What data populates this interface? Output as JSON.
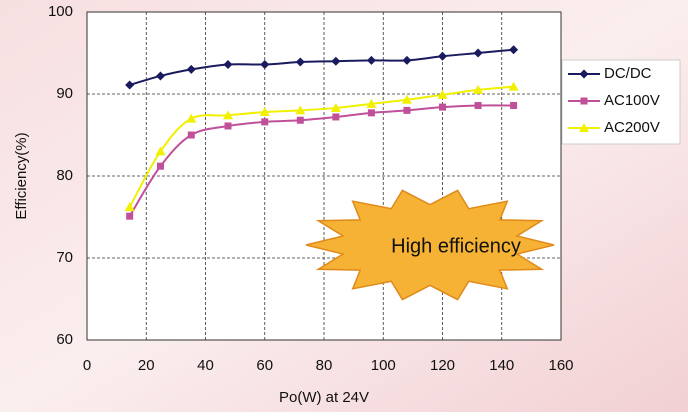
{
  "chart_data": {
    "type": "line",
    "xlabel": "Po(W) at 24V",
    "ylabel": "Efficiency(%)",
    "annotation": "High efficiency",
    "xlim": [
      0,
      160
    ],
    "xticks": [
      0,
      20,
      40,
      60,
      80,
      100,
      120,
      140,
      160
    ],
    "ylim": [
      60,
      100
    ],
    "yticks": [
      60,
      70,
      80,
      90,
      100
    ],
    "grid": true,
    "legend": "right",
    "series": [
      {
        "name": "DC/DC",
        "color": "#1a1a5e",
        "marker": "diamond",
        "x": [
          14.4,
          24.8,
          35.2,
          47.6,
          60,
          72,
          84,
          96,
          108,
          120,
          132,
          144
        ],
        "values": [
          91.1,
          92.2,
          93.0,
          93.6,
          93.6,
          93.9,
          94.0,
          94.1,
          94.1,
          94.6,
          95.0,
          95.4
        ]
      },
      {
        "name": "AC100V",
        "color": "#c0509a",
        "marker": "square",
        "x": [
          14.4,
          24.8,
          35.2,
          47.6,
          60,
          72,
          84,
          96,
          108,
          120,
          132,
          144
        ],
        "values": [
          75.1,
          81.2,
          85.0,
          86.1,
          86.6,
          86.8,
          87.2,
          87.7,
          88.0,
          88.4,
          88.6,
          88.6
        ]
      },
      {
        "name": "AC200V",
        "color": "#f0f000",
        "marker": "triangle",
        "x": [
          14.4,
          24.8,
          35.2,
          47.6,
          60,
          72,
          84,
          96,
          108,
          120,
          132,
          144
        ],
        "values": [
          76.2,
          83.0,
          87.0,
          87.4,
          87.8,
          88.0,
          88.3,
          88.8,
          89.3,
          89.9,
          90.5,
          90.9
        ]
      }
    ]
  }
}
